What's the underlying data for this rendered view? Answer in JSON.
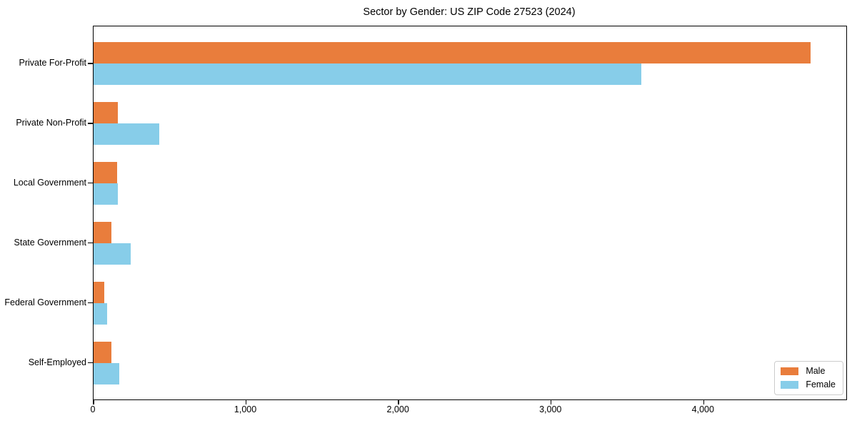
{
  "chart_data": {
    "type": "bar",
    "orientation": "horizontal",
    "title": "Sector by Gender: US ZIP Code 27523 (2024)",
    "categories": [
      "Private For-Profit",
      "Private Non-Profit",
      "Local Government",
      "State Government",
      "Federal Government",
      "Self-Employed"
    ],
    "series": [
      {
        "name": "Male",
        "color": "#e97d3c",
        "values": [
          4700,
          160,
          153,
          117,
          70,
          117
        ]
      },
      {
        "name": "Female",
        "color": "#87cde9",
        "values": [
          3590,
          430,
          157,
          244,
          87,
          170
        ]
      }
    ],
    "xlabel": "",
    "ylabel": "",
    "xlim": [
      0,
      4935
    ],
    "xticks": [
      0,
      1000,
      2000,
      3000,
      4000
    ],
    "xtick_labels": [
      "0",
      "1,000",
      "2,000",
      "3,000",
      "4,000"
    ],
    "grid": false,
    "legend": {
      "position": "lower right",
      "items": [
        "Male",
        "Female"
      ]
    }
  },
  "colors": {
    "spine": "#000000",
    "legend_border": "#cccccc",
    "background": "#ffffff"
  }
}
